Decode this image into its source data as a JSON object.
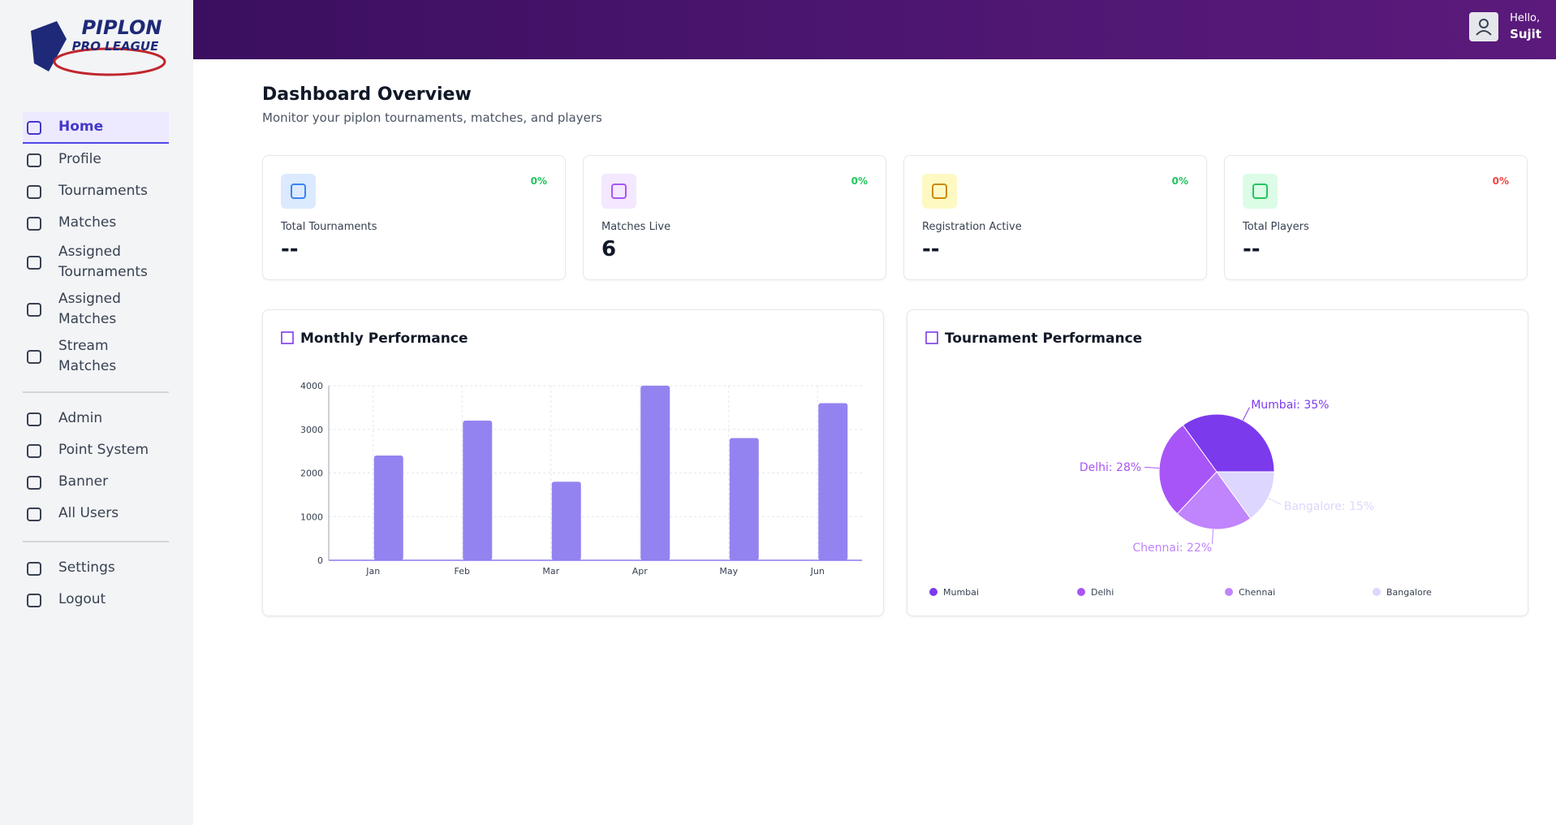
{
  "logo": {
    "title": "PIPLON",
    "subtitle": "PRO LEAGUE"
  },
  "sidebar": {
    "nav": [
      [
        "Home",
        "Profile",
        "Tournaments",
        "Matches",
        "Assigned Tournaments",
        "Assigned Matches",
        "Stream Matches"
      ],
      [
        "Admin",
        "Point System",
        "Banner",
        "All Users"
      ],
      [
        "Settings",
        "Logout"
      ]
    ]
  },
  "header": {
    "greeting": "Hello,",
    "user": "Sujit"
  },
  "page": {
    "title": "Dashboard Overview",
    "subtitle": "Monitor your piplon tournaments, matches, and players"
  },
  "cards": [
    {
      "label": "Total Tournaments",
      "value": "--",
      "change": "0%"
    },
    {
      "label": "Matches Live",
      "value": 6,
      "change": "0%"
    },
    {
      "label": "Registration Active",
      "value": "--",
      "change": "0%"
    },
    {
      "label": "Total Players",
      "value": "--",
      "change": "0%"
    }
  ],
  "chart_data": [
    {
      "type": "bar",
      "title": "Monthly Performance",
      "categories": [
        "Jan",
        "Feb",
        "Mar",
        "Apr",
        "May",
        "Jun"
      ],
      "values": [
        2400,
        3200,
        1800,
        4000,
        2800,
        3600
      ],
      "color": "#9383f0",
      "ylim": [
        0,
        4000
      ],
      "yticks": [
        0,
        1000,
        2000,
        3000,
        4000
      ],
      "grid": true
    },
    {
      "type": "pie",
      "title": "Tournament Performance",
      "categories": [
        "Mumbai",
        "Delhi",
        "Chennai",
        "Bangalore"
      ],
      "values": [
        35,
        28,
        22,
        15
      ],
      "value_labels": [
        "Mumbai: 35%",
        "Delhi: 28%",
        "Chennai: 22%",
        "Bangalore: 15%"
      ],
      "colors": [
        "#7c3aed",
        "#a855f7",
        "#c084fc",
        "#ddd6fe"
      ],
      "legend": "bottom"
    }
  ]
}
